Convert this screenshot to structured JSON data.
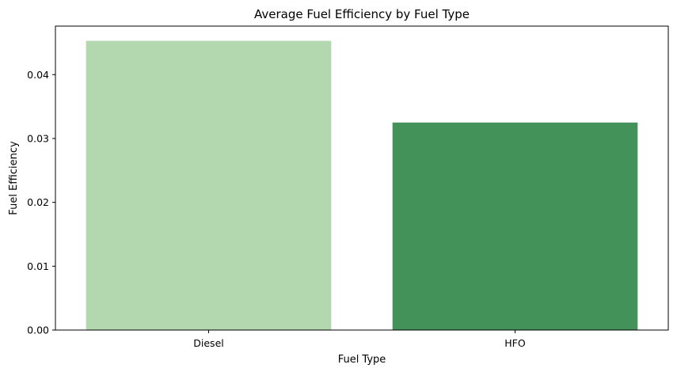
{
  "chart_data": {
    "type": "bar",
    "title": "Average Fuel Efficiency by Fuel Type",
    "xlabel": "Fuel Type",
    "ylabel": "Fuel Efficiency",
    "categories": [
      "Diesel",
      "HFO"
    ],
    "values": [
      0.0453,
      0.0325
    ],
    "colors": [
      "#b3d8b0",
      "#43925a"
    ],
    "ylim": [
      0,
      0.0476
    ],
    "yticks": [
      0.0,
      0.01,
      0.02,
      0.03,
      0.04
    ],
    "ytick_labels": [
      "0.00",
      "0.01",
      "0.02",
      "0.03",
      "0.04"
    ],
    "grid": false,
    "legend": "none"
  }
}
